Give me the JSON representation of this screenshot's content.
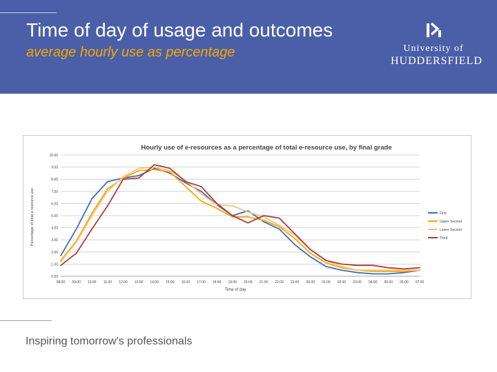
{
  "slide": {
    "title": "Time of day of usage and outcomes",
    "subtitle": "average hourly use as percentage",
    "tagline": "Inspiring tomorrow's professionals"
  },
  "logo": {
    "line1": "University of",
    "line2": "HUDDERSFIELD"
  },
  "colors": {
    "header_bg": "#4a5fa8",
    "subtitle": "#f5a800"
  },
  "chart_data": {
    "type": "line",
    "title": "Hourly use of e-resources as a percentage of total e-resource use,  by final grade",
    "xlabel": "Time of day",
    "ylabel": "Percentage of total e-resource use",
    "ylim": [
      0,
      10
    ],
    "yticks": [
      "0.00",
      "1.00",
      "2.00",
      "3.00",
      "4.00",
      "5.00",
      "6.00",
      "7.00",
      "8.00",
      "9.00",
      "10.00"
    ],
    "categories": [
      "08:00",
      "09:00",
      "10:00",
      "11:00",
      "12:00",
      "13:00",
      "14:00",
      "15:00",
      "16:00",
      "17:00",
      "18:00",
      "19:00",
      "20:00",
      "21:00",
      "22:00",
      "23:00",
      "00:00",
      "01:00",
      "02:00",
      "03:00",
      "04:00",
      "05:00",
      "06:00",
      "07:00"
    ],
    "grid": true,
    "legend_position": "right",
    "series": [
      {
        "name": "First",
        "color": "#3b6fb6",
        "values": [
          1.7,
          3.9,
          6.4,
          7.8,
          8.1,
          8.3,
          8.9,
          8.5,
          7.7,
          7.0,
          5.9,
          5.0,
          5.4,
          4.5,
          3.9,
          2.6,
          1.6,
          0.8,
          0.5,
          0.3,
          0.2,
          0.2,
          0.3,
          0.5
        ]
      },
      {
        "name": "Upper Second",
        "color": "#f5a800",
        "values": [
          1.3,
          2.9,
          5.2,
          7.2,
          8.1,
          8.7,
          8.8,
          8.6,
          7.4,
          6.2,
          5.6,
          4.9,
          4.9,
          4.6,
          4.1,
          3.1,
          1.9,
          1.1,
          0.7,
          0.5,
          0.4,
          0.4,
          0.4,
          0.5
        ]
      },
      {
        "name": "Lower Second",
        "color": "#f2c47a",
        "values": [
          1.2,
          2.8,
          5.0,
          7.0,
          8.2,
          8.9,
          9.0,
          8.7,
          7.9,
          6.8,
          5.9,
          5.8,
          5.3,
          4.9,
          4.2,
          3.4,
          2.2,
          1.3,
          0.8,
          0.5,
          0.5,
          0.5,
          0.5,
          0.5
        ]
      },
      {
        "name": "Third",
        "color": "#b2393a",
        "values": [
          0.9,
          1.9,
          3.9,
          5.8,
          8.0,
          8.1,
          9.2,
          8.9,
          7.8,
          7.4,
          6.0,
          5.0,
          4.4,
          5.0,
          4.8,
          3.5,
          2.2,
          1.3,
          1.0,
          0.9,
          0.9,
          0.7,
          0.6,
          0.7
        ]
      }
    ]
  }
}
